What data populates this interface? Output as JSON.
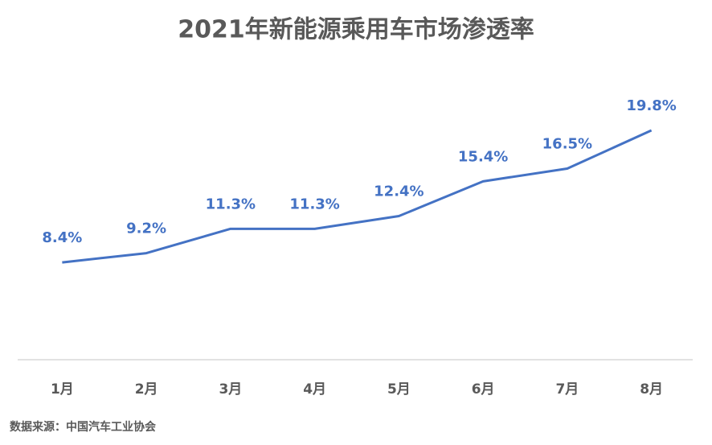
{
  "chart_data": {
    "type": "line",
    "title": "2021年新能源乘用车市场渗透率",
    "categories": [
      "1月",
      "2月",
      "3月",
      "4月",
      "5月",
      "6月",
      "7月",
      "8月"
    ],
    "series": [
      {
        "color": "#4472c4",
        "values": [
          8.4,
          9.2,
          11.3,
          11.3,
          12.4,
          15.4,
          16.5,
          19.8
        ],
        "value_labels": [
          "8.4%",
          "9.2%",
          "11.3%",
          "11.3%",
          "12.4%",
          "15.4%",
          "16.5%",
          "19.8%"
        ]
      }
    ],
    "source": "数据来源：中国汽车工业协会"
  }
}
